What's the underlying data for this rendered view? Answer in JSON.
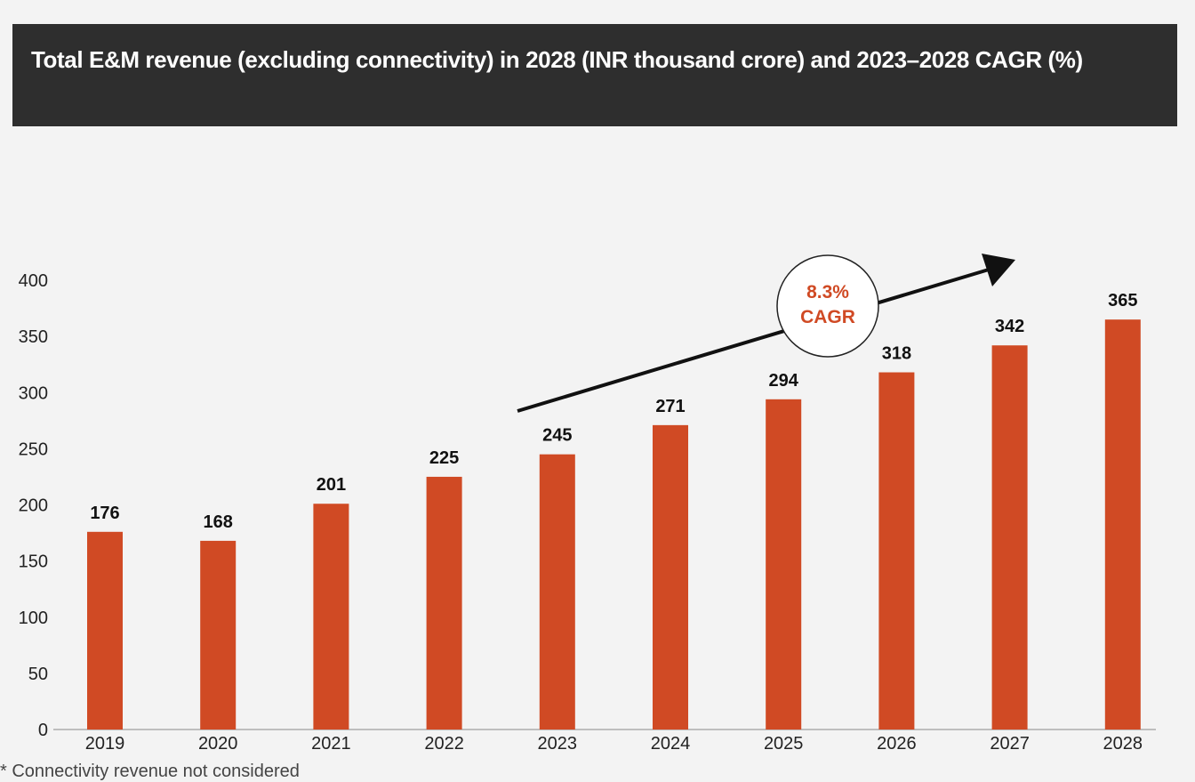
{
  "header": {
    "title": "Total E&M revenue (excluding connectivity) in 2028 (INR thousand crore) and 2023–2028 CAGR (%)"
  },
  "chart_data": {
    "type": "bar",
    "title": "Total E&M revenue (excluding connectivity) in 2028 (INR thousand crore) and 2023–2028 CAGR (%)",
    "xlabel": "",
    "ylabel": "",
    "ylim": [
      0,
      400
    ],
    "yticks": [
      0,
      50,
      100,
      150,
      200,
      250,
      300,
      350,
      400
    ],
    "ytick_labels": [
      "0",
      "50",
      "100",
      "150",
      "200",
      "250",
      "300",
      "350",
      "400"
    ],
    "categories": [
      "2019",
      "2020",
      "2021",
      "2022",
      "2023",
      "2024",
      "2025",
      "2026",
      "2027",
      "2028"
    ],
    "series": [
      {
        "name": "Total E&M revenue",
        "values": [
          176,
          168,
          201,
          225,
          245,
          271,
          294,
          318,
          342,
          365
        ],
        "color": "#d04a24"
      }
    ],
    "annotation": {
      "value": "8.3%",
      "label": "CAGR",
      "from_category": "2023",
      "to_category": "2028",
      "color": "#d04a24"
    }
  },
  "footnote": "* Connectivity revenue not considered"
}
